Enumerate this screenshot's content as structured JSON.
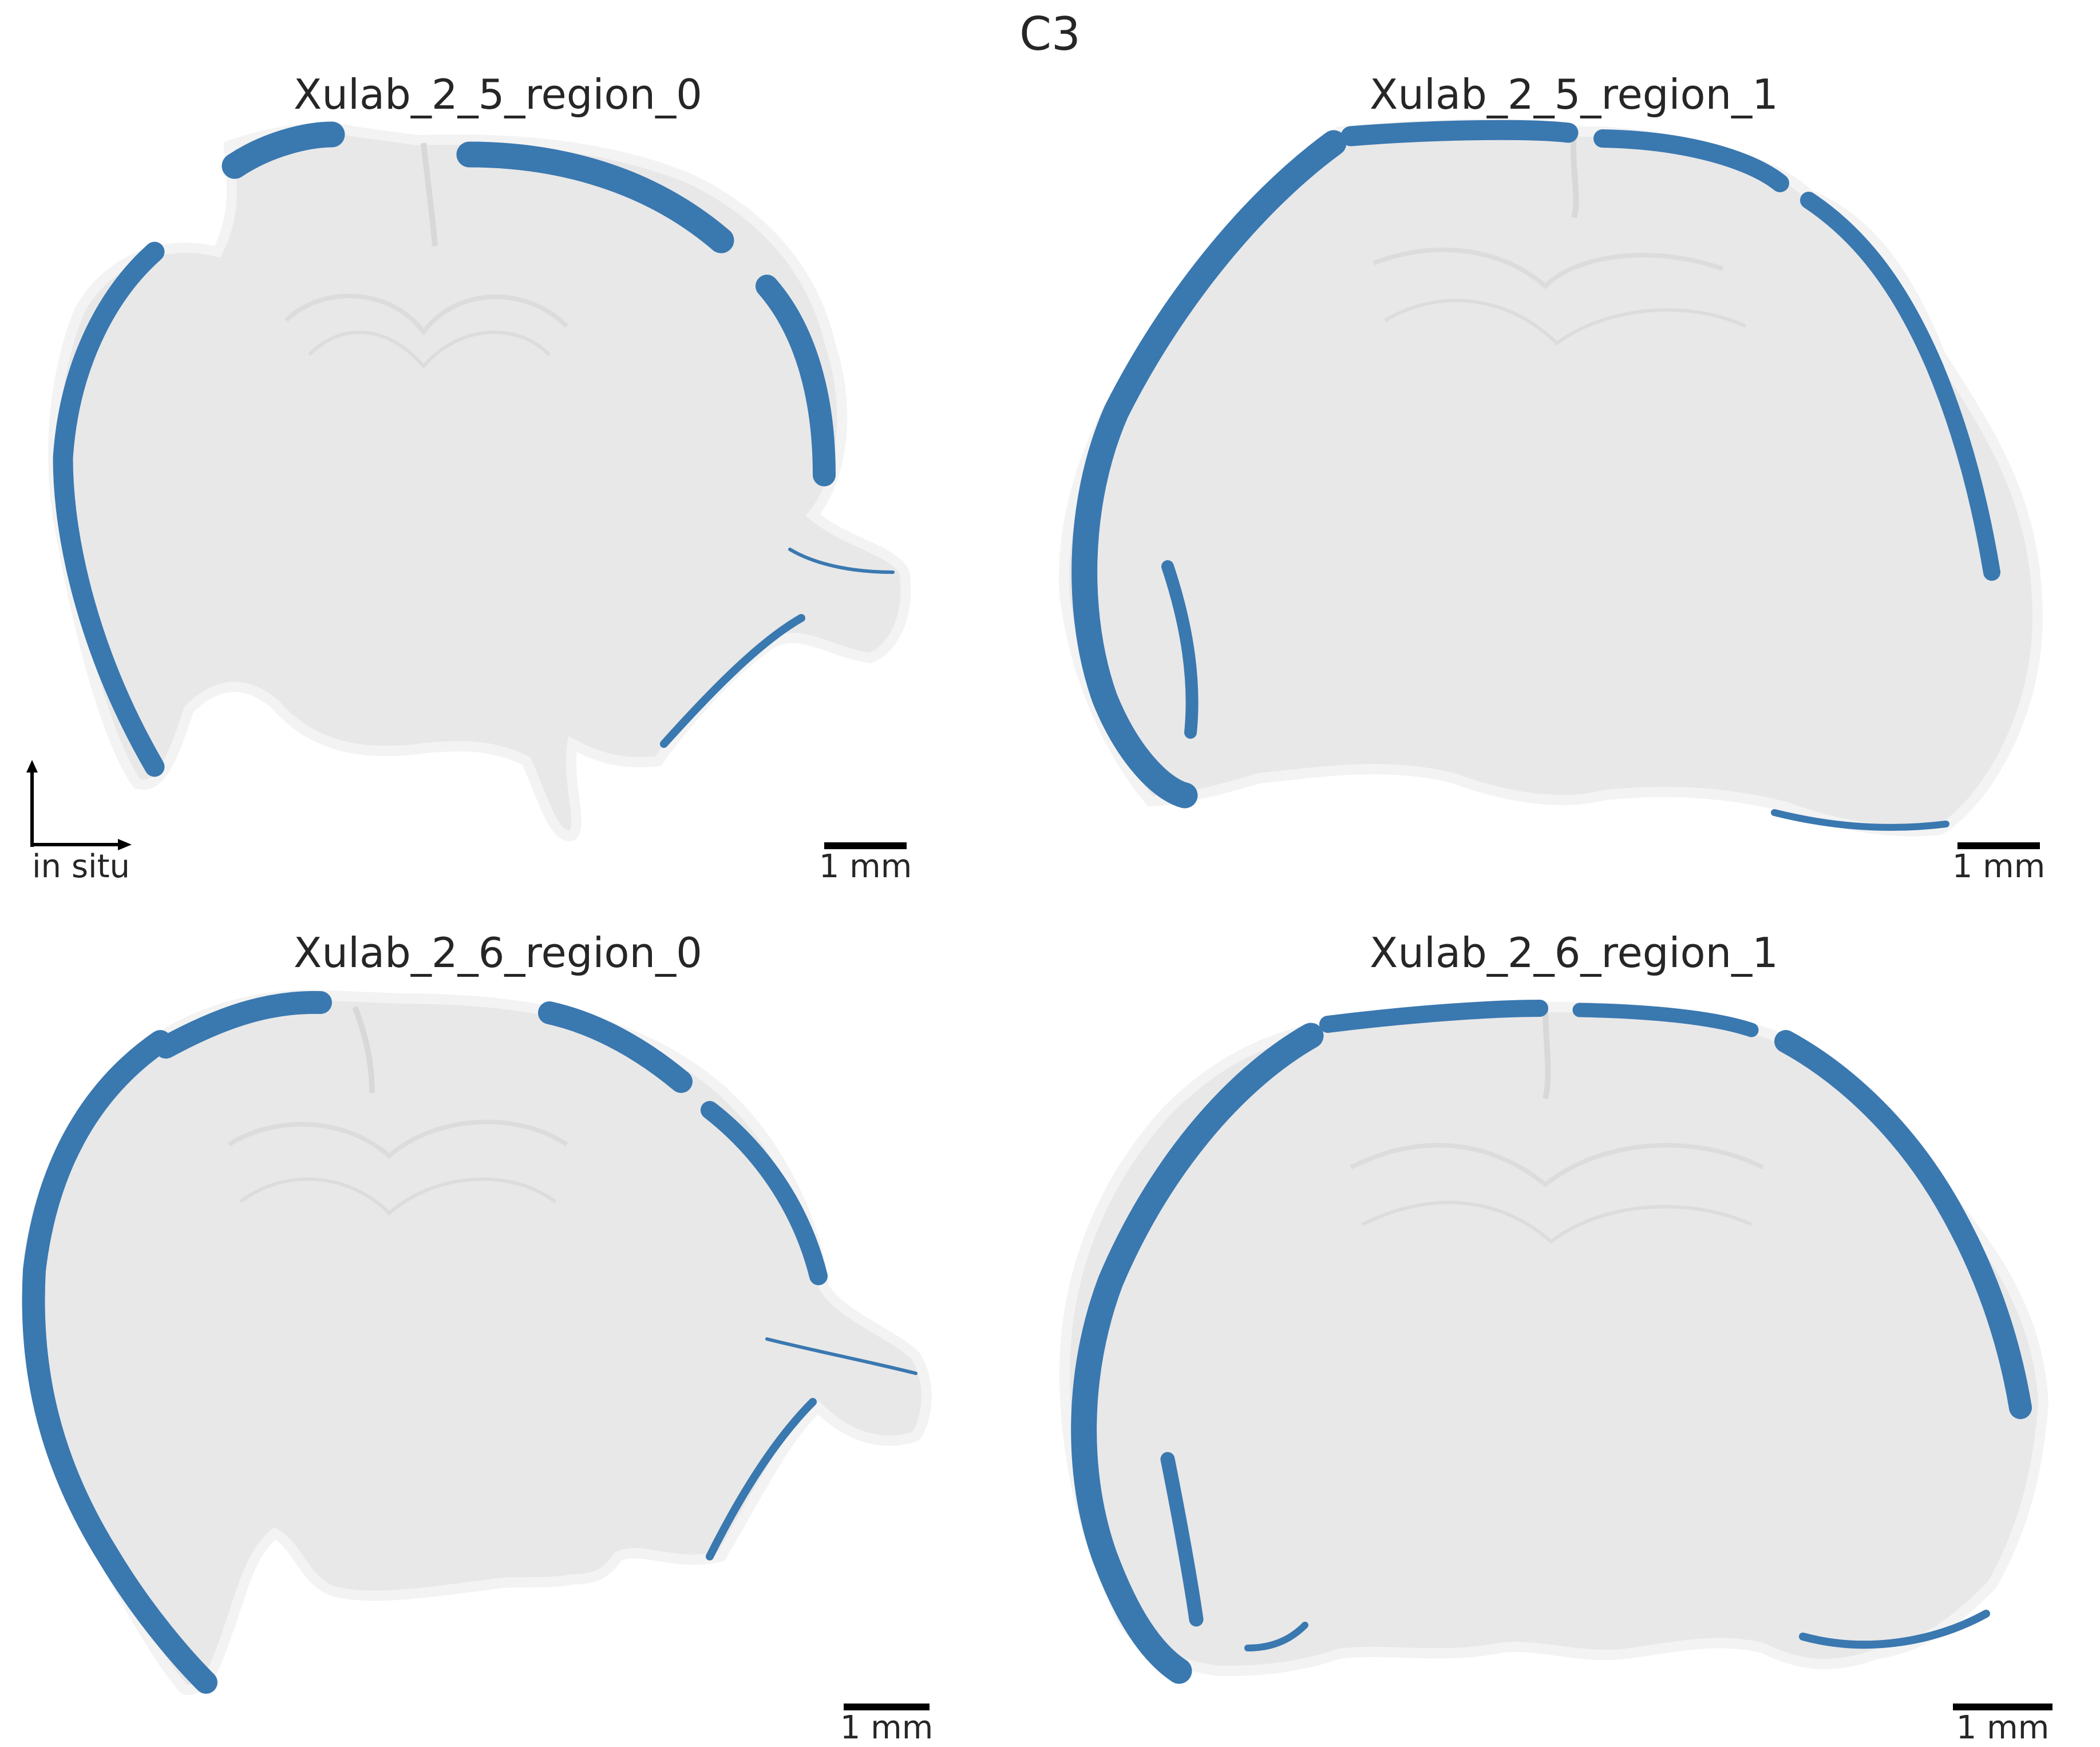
{
  "figure_title": "C3",
  "colors": {
    "tissue": "#e6e6e6",
    "tissue_edge": "#f2f2f2",
    "expression": "#3a78b0",
    "scalebar": "#000000",
    "text": "#262626"
  },
  "panels": [
    {
      "title": "Xulab_2_5_region_0",
      "scalebar_label": "1 mm"
    },
    {
      "title": "Xulab_2_5_region_1",
      "scalebar_label": "1 mm"
    },
    {
      "title": "Xulab_2_6_region_0",
      "scalebar_label": "1 mm"
    },
    {
      "title": "Xulab_2_6_region_1",
      "scalebar_label": "1 mm"
    }
  ],
  "axes_indicator": {
    "label": "in situ"
  }
}
